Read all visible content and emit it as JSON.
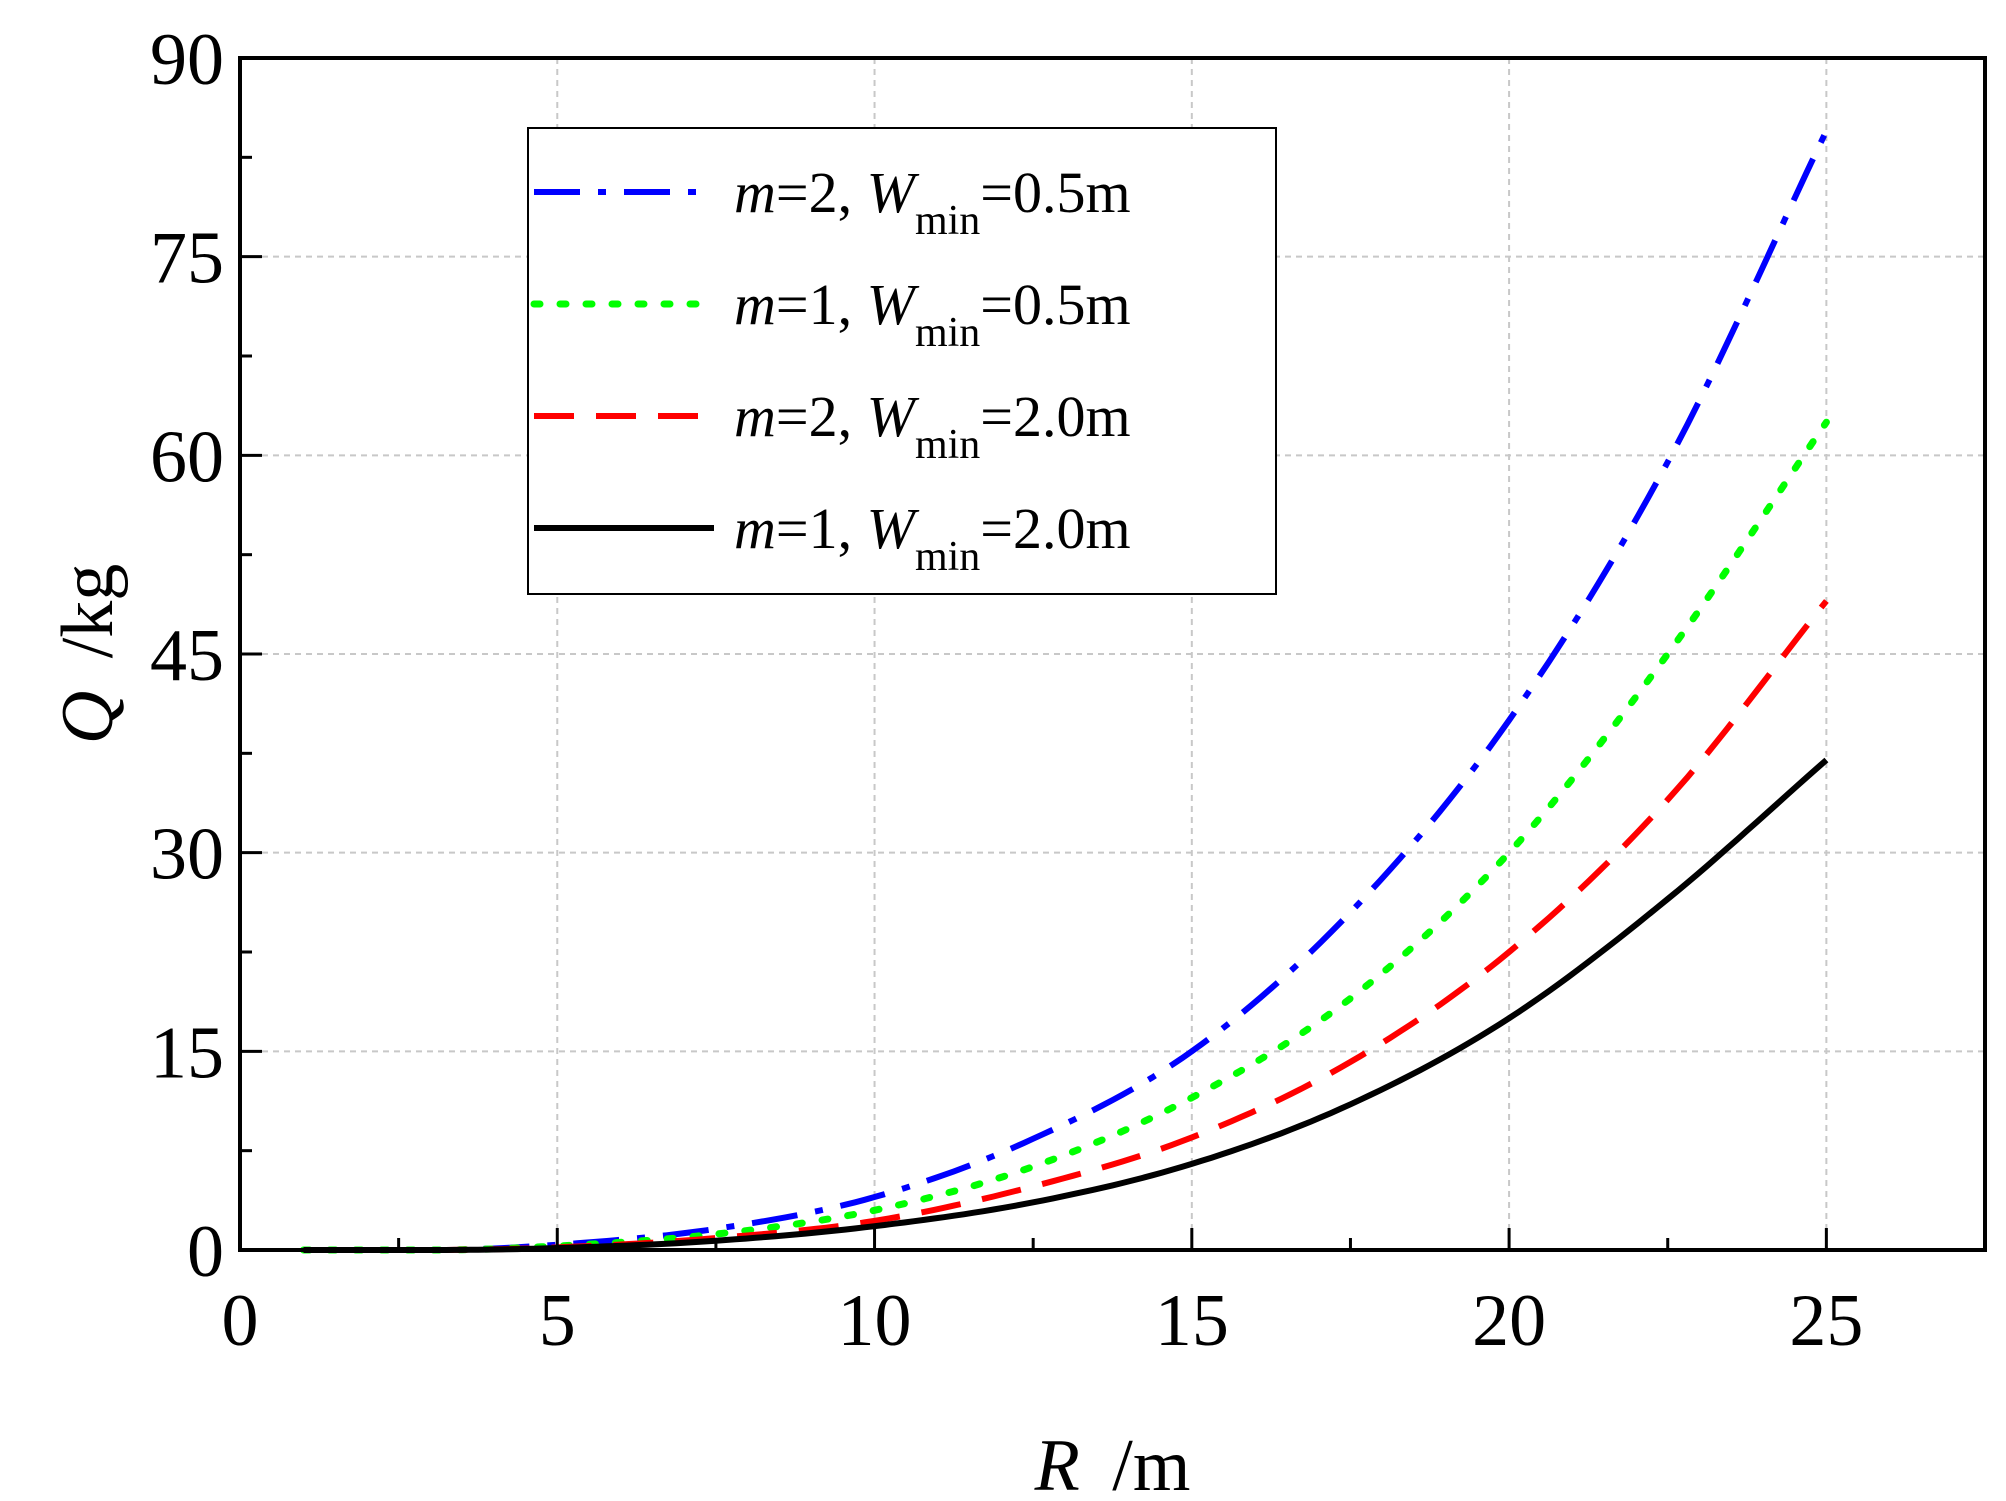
{
  "chart_data": {
    "type": "line",
    "xlabel": "R",
    "xunit": "/m",
    "ylabel": "Q",
    "yunit": "/kg",
    "xlim": [
      0,
      27.5
    ],
    "ylim": [
      0,
      90
    ],
    "xticks": [
      0,
      5,
      10,
      15,
      20,
      25
    ],
    "yticks": [
      0,
      15,
      30,
      45,
      60,
      75,
      90
    ],
    "grid": true,
    "legend_position": "top-left",
    "x": [
      1,
      3,
      5,
      7.5,
      10,
      12.5,
      15,
      17.5,
      20,
      22.5,
      25
    ],
    "series": [
      {
        "name": "m=2, W_min=0.5m",
        "legend": {
          "var": "m",
          "eq1": "=2, ",
          "w": "W",
          "sub": "min",
          "eq2": "=0.5m"
        },
        "color": "#0000ff",
        "dash": "dashdot",
        "values": [
          0,
          0,
          0.4,
          1.6,
          4.0,
          8.4,
          15.0,
          25.5,
          40.0,
          59.5,
          84.5
        ]
      },
      {
        "name": "m=1, W_min=0.5m",
        "legend": {
          "var": "m",
          "eq1": "=1, ",
          "w": "W",
          "sub": "min",
          "eq2": "=0.5m"
        },
        "color": "#00ff00",
        "dash": "dot",
        "values": [
          0,
          0,
          0.3,
          1.2,
          3.0,
          6.3,
          11.5,
          19.0,
          30.0,
          45.0,
          62.5
        ]
      },
      {
        "name": "m=2, W_min=2.0m",
        "legend": {
          "var": "m",
          "eq1": "=2, ",
          "w": "W",
          "sub": "min",
          "eq2": "=2.0m"
        },
        "color": "#ff0000",
        "dash": "dash",
        "values": [
          0,
          0,
          0.2,
          0.9,
          2.2,
          4.8,
          8.5,
          14.2,
          22.5,
          34.0,
          49.0
        ]
      },
      {
        "name": "m=1, W_min=2.0m",
        "legend": {
          "var": "m",
          "eq1": "=1, ",
          "w": "W",
          "sub": "min",
          "eq2": "=2.0m"
        },
        "color": "#000000",
        "dash": "solid",
        "values": [
          0,
          0,
          0.15,
          0.7,
          1.8,
          3.6,
          6.5,
          11.0,
          17.5,
          26.5,
          37.0
        ]
      }
    ]
  }
}
